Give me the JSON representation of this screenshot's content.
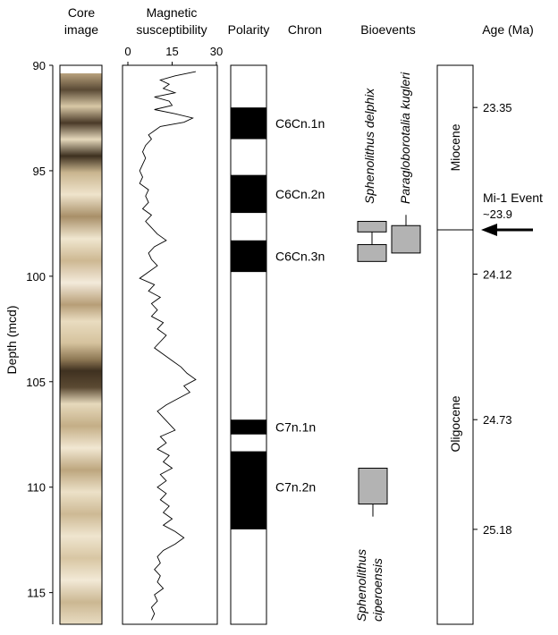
{
  "headers": {
    "core_line1": "Core",
    "core_line2": "image",
    "mag_line1": "Magnetic",
    "mag_line2": "susceptibility",
    "polarity": "Polarity",
    "chron": "Chron",
    "bioevents": "Bioevents",
    "age": "Age (Ma)"
  },
  "chart_data": {
    "type": "line",
    "ylabel": "Depth (mcd)",
    "depth_range": [
      90,
      116.5
    ],
    "depth_ticks": [
      90,
      95,
      100,
      105,
      110,
      115
    ],
    "susceptibility_range": [
      0,
      30
    ],
    "susceptibility_ticks": [
      0,
      15,
      30
    ],
    "susceptibility_points": [
      [
        90.3,
        23
      ],
      [
        90.5,
        16
      ],
      [
        90.7,
        11
      ],
      [
        90.9,
        14
      ],
      [
        91.1,
        12
      ],
      [
        91.3,
        16
      ],
      [
        91.5,
        9
      ],
      [
        91.7,
        14
      ],
      [
        91.9,
        15
      ],
      [
        92.1,
        9
      ],
      [
        92.3,
        16
      ],
      [
        92.5,
        22
      ],
      [
        92.7,
        19
      ],
      [
        92.9,
        11
      ],
      [
        93.1,
        9
      ],
      [
        93.3,
        7
      ],
      [
        93.5,
        8
      ],
      [
        93.8,
        6
      ],
      [
        94.1,
        5
      ],
      [
        94.4,
        6
      ],
      [
        94.7,
        5
      ],
      [
        95.0,
        4
      ],
      [
        95.3,
        5
      ],
      [
        95.6,
        4
      ],
      [
        95.9,
        7
      ],
      [
        96.2,
        6
      ],
      [
        96.5,
        7
      ],
      [
        96.8,
        5
      ],
      [
        97.1,
        8
      ],
      [
        97.4,
        6
      ],
      [
        97.7,
        8
      ],
      [
        98.0,
        10
      ],
      [
        98.3,
        13
      ],
      [
        98.6,
        9
      ],
      [
        98.9,
        7
      ],
      [
        99.2,
        8
      ],
      [
        99.5,
        10
      ],
      [
        99.8,
        7
      ],
      [
        100.1,
        4
      ],
      [
        100.4,
        9
      ],
      [
        100.7,
        7
      ],
      [
        101.0,
        11
      ],
      [
        101.3,
        8
      ],
      [
        101.6,
        10
      ],
      [
        101.9,
        8
      ],
      [
        102.2,
        12
      ],
      [
        102.5,
        10
      ],
      [
        102.8,
        13
      ],
      [
        103.1,
        11
      ],
      [
        103.4,
        9
      ],
      [
        103.7,
        12
      ],
      [
        104.0,
        15
      ],
      [
        104.3,
        18
      ],
      [
        104.6,
        20
      ],
      [
        104.9,
        23
      ],
      [
        105.2,
        19
      ],
      [
        105.5,
        21
      ],
      [
        105.8,
        17
      ],
      [
        106.1,
        13
      ],
      [
        106.4,
        10
      ],
      [
        106.7,
        12
      ],
      [
        107.0,
        14
      ],
      [
        107.3,
        16
      ],
      [
        107.6,
        11
      ],
      [
        107.9,
        13
      ],
      [
        108.2,
        10
      ],
      [
        108.5,
        14
      ],
      [
        108.8,
        12
      ],
      [
        109.1,
        15
      ],
      [
        109.4,
        11
      ],
      [
        109.7,
        13
      ],
      [
        110.0,
        10
      ],
      [
        110.3,
        13
      ],
      [
        110.6,
        11
      ],
      [
        110.9,
        14
      ],
      [
        111.2,
        12
      ],
      [
        111.5,
        15
      ],
      [
        111.8,
        12
      ],
      [
        112.1,
        16
      ],
      [
        112.4,
        19
      ],
      [
        112.7,
        16
      ],
      [
        113.0,
        12
      ],
      [
        113.3,
        10
      ],
      [
        113.6,
        11
      ],
      [
        113.9,
        9
      ],
      [
        114.2,
        11
      ],
      [
        114.5,
        10
      ],
      [
        114.8,
        12
      ],
      [
        115.1,
        9
      ],
      [
        115.4,
        10
      ],
      [
        115.7,
        8
      ],
      [
        116.0,
        9
      ],
      [
        116.3,
        8
      ]
    ],
    "polarity_normal_intervals": [
      [
        92.0,
        93.5
      ],
      [
        95.2,
        97.0
      ],
      [
        98.3,
        99.8
      ],
      [
        106.8,
        107.5
      ],
      [
        108.3,
        112.0
      ]
    ],
    "chrons": [
      {
        "label": "C6Cn.1n",
        "depth": 92.75
      },
      {
        "label": "C6Cn.2n",
        "depth": 96.1
      },
      {
        "label": "C6Cn.3n",
        "depth": 99.05
      },
      {
        "label": "C7n.1n",
        "depth": 107.15
      },
      {
        "label": "C7n.2n",
        "depth": 110.0
      }
    ],
    "bioevents": [
      {
        "name": "Sphenolithus delphix",
        "boxes": [
          [
            97.4,
            97.9
          ],
          [
            98.5,
            99.3
          ]
        ]
      },
      {
        "name": "Paragloborotalia kugleri",
        "boxes": [
          [
            97.6,
            98.9
          ]
        ]
      },
      {
        "name": "Sphenolithus ciperoensis",
        "line1": "Sphenolithus",
        "line2": "ciperoensis",
        "boxes": [
          [
            109.1,
            110.8
          ]
        ]
      }
    ],
    "epochs": [
      {
        "name": "Miocene",
        "range": [
          90,
          97.8
        ]
      },
      {
        "name": "Oligocene",
        "range": [
          97.8,
          116.5
        ]
      }
    ],
    "boundary_depth": 97.8,
    "ages": [
      {
        "label": "23.35",
        "depth": 92.0
      },
      {
        "label": "24.12",
        "depth": 99.9
      },
      {
        "label": "24.73",
        "depth": 106.8
      },
      {
        "label": "25.18",
        "depth": 112.0
      }
    ],
    "event": {
      "label": "Mi-1 Event",
      "sublabel": "~23.9",
      "depth": 97.8
    }
  }
}
